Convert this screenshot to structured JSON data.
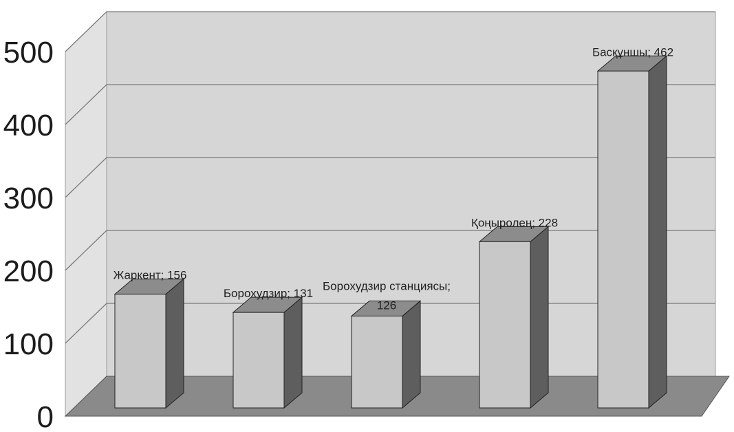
{
  "chart_data": {
    "type": "bar",
    "categories": [
      "Жаркент",
      "Борохудзир",
      "Борохудзир станциясы",
      "Қоңыролең",
      "Басқұншы"
    ],
    "values": [
      156,
      131,
      126,
      228,
      462
    ],
    "data_labels": [
      "Жаркент; 156",
      "Борохудзир; 131",
      "Борохудзир станциясы;",
      "Қоңыролең; 228",
      "Басқұншы; 462"
    ],
    "data_labels_line2": [
      "",
      "",
      "126",
      "",
      ""
    ],
    "yticks": [
      "0",
      "100",
      "200",
      "300",
      "400",
      "500"
    ],
    "ylim": [
      0,
      500
    ],
    "grid": true,
    "style": "3d-column",
    "title": "",
    "xlabel": "",
    "ylabel": "",
    "colors": {
      "bar_front": "#c8c8c8",
      "bar_top": "#8c8c8c",
      "bar_side": "#5e5e5e",
      "back_wall": "#d6d6d6",
      "side_wall": "#e2e2e2",
      "floor": "#8a8a8a",
      "gridline": "#7a7a7a"
    }
  }
}
